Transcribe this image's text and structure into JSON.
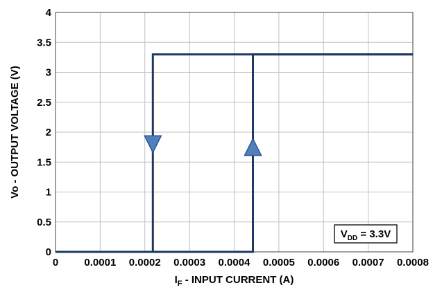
{
  "chart_data": {
    "type": "line",
    "xlabel": "I",
    "xlabel_sub": "F",
    "xlabel_rest": " - INPUT CURRENT (A)",
    "ylabel": "Vo - OUTPUT VOLTAGE (V)",
    "xlim": [
      0,
      0.0008
    ],
    "ylim": [
      0,
      4
    ],
    "x_ticks": [
      0,
      0.0001,
      0.0002,
      0.0003,
      0.0004,
      0.0005,
      0.0006,
      0.0007,
      0.0008
    ],
    "x_tick_labels": [
      "0",
      "0.0001",
      "0.0002",
      "0.0003",
      "0.0004",
      "0.0005",
      "0.0006",
      "0.0007",
      "0.0008"
    ],
    "y_ticks": [
      0,
      0.5,
      1,
      1.5,
      2,
      2.5,
      3,
      3.5,
      4
    ],
    "y_tick_labels": [
      "0",
      "0.5",
      "1",
      "1.5",
      "2",
      "2.5",
      "3",
      "3.5",
      "4"
    ],
    "grid": true,
    "series": [
      {
        "x": [
          0,
          0.000442,
          0.000442,
          0.0008
        ],
        "y": [
          0,
          0,
          3.3,
          3.3
        ],
        "direction": "rising"
      },
      {
        "x": [
          0.0008,
          0.000218,
          0.000218,
          0
        ],
        "y": [
          3.3,
          3.3,
          0,
          0
        ],
        "direction": "falling"
      }
    ],
    "arrows": [
      {
        "x": 0.000218,
        "y": 1.8,
        "direction": "down"
      },
      {
        "x": 0.000442,
        "y": 1.75,
        "direction": "up"
      }
    ],
    "annotation": {
      "main": "V",
      "sub": "DD",
      "rest": " = 3.3V"
    },
    "colors": {
      "line": "#1f3864",
      "arrow_fill": "#4f81bd",
      "arrow_stroke": "#2f528f",
      "grid": "#bfbfbf"
    }
  }
}
